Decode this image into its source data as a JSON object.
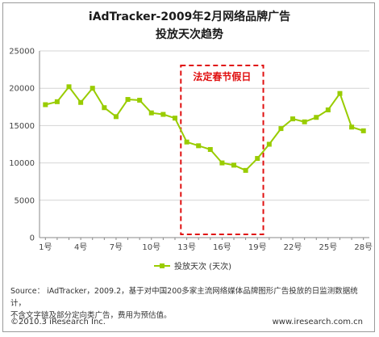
{
  "header": {
    "title_line1": "iAdTracker-2009年2月网络品牌广告",
    "title_line2": "投放天次趋势"
  },
  "holiday_box": {
    "label": "法定春节假日",
    "x_range": [
      12.5,
      19.5
    ]
  },
  "chart_data": {
    "type": "line",
    "title": "iAdTracker-2009年2月网络品牌广告投放天次趋势",
    "xlabel": "",
    "ylabel": "",
    "x": [
      1,
      2,
      3,
      4,
      5,
      6,
      7,
      8,
      9,
      10,
      11,
      12,
      13,
      14,
      15,
      16,
      17,
      18,
      19,
      20,
      21,
      22,
      23,
      24,
      25,
      26,
      27,
      28
    ],
    "x_tick_labels": [
      {
        "x": 1,
        "label": "1号"
      },
      {
        "x": 4,
        "label": "4号"
      },
      {
        "x": 7,
        "label": "7号"
      },
      {
        "x": 10,
        "label": "10号"
      },
      {
        "x": 13,
        "label": "13号"
      },
      {
        "x": 16,
        "label": "16号"
      },
      {
        "x": 19,
        "label": "19号"
      },
      {
        "x": 22,
        "label": "22号"
      },
      {
        "x": 25,
        "label": "25号"
      },
      {
        "x": 28,
        "label": "28号"
      }
    ],
    "ylim": [
      0,
      25000
    ],
    "y_ticks": [
      0,
      5000,
      10000,
      15000,
      20000,
      25000
    ],
    "grid": "horizontal",
    "legend_position": "bottom",
    "series": [
      {
        "name": "投放天次 (天次)",
        "color": "#99cc00",
        "values": [
          17800,
          18200,
          20200,
          18100,
          20000,
          17400,
          16200,
          18500,
          18400,
          16700,
          16500,
          16000,
          12800,
          12300,
          11800,
          10000,
          9700,
          9000,
          10600,
          12500,
          14600,
          15900,
          15500,
          16100,
          17100,
          19300,
          14800,
          14300
        ]
      }
    ]
  },
  "source": {
    "line1": "Source： iAdTracker，2009.2，基于对中国200多家主流网络媒体品牌图形广告投放的日监测数据统计，",
    "line2": "不含文字链及部分定向类广告，费用为预估值。"
  },
  "footer": {
    "copyright": "©2010.3 iResearch Inc.",
    "website": "www.iresearch.com.cn"
  }
}
